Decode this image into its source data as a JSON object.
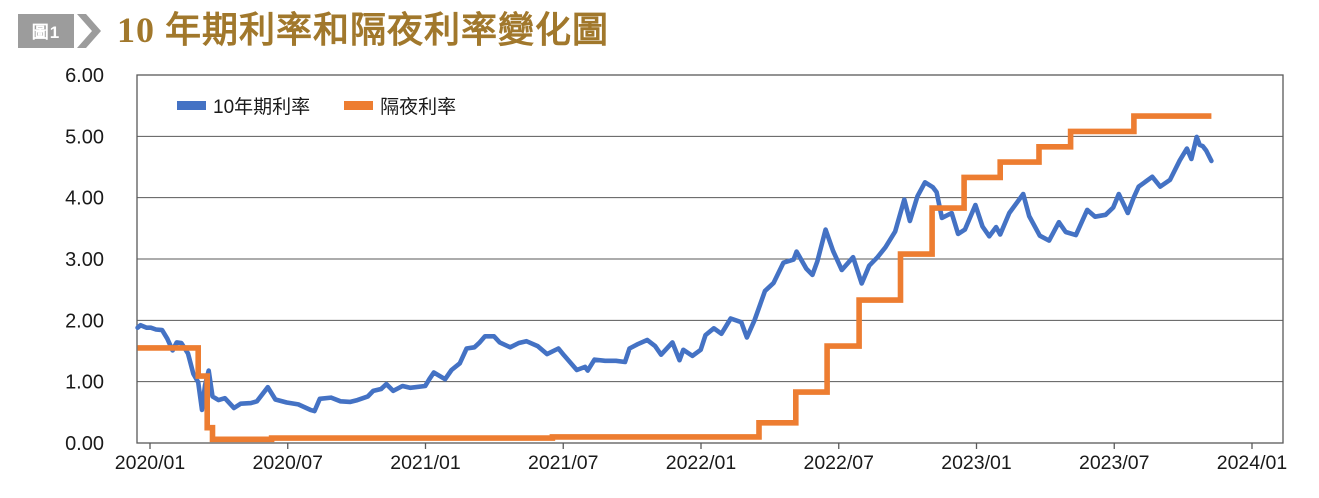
{
  "figure_badge": "圖1",
  "title": "10 年期利率和隔夜利率變化圖",
  "colors": {
    "title": "#a1782c",
    "badge": "#9c9c9c",
    "series_10y": "#4472c4",
    "series_overnight": "#ed7d31",
    "grid": "#595959",
    "axis_text": "#1a1a1a"
  },
  "chart_data": {
    "type": "line",
    "title": "10 年期利率和隔夜利率變化圖",
    "ylabel": "",
    "xlabel": "",
    "ylim": [
      0,
      6
    ],
    "grid": "horizontal",
    "legend_position": "top-left-inside",
    "y_tick_labels": [
      "6.00",
      "5.00",
      "4.00",
      "3.00",
      "2.00",
      "1.00",
      "0.00"
    ],
    "y_tick_values": [
      6,
      5,
      4,
      3,
      2,
      1,
      0
    ],
    "x_tick_labels": [
      "2020/01",
      "2020/07",
      "2021/01",
      "2021/07",
      "2022/01",
      "2022/07",
      "2023/01",
      "2023/07",
      "2024/01"
    ],
    "series": [
      {
        "name": "10年期利率",
        "style": "line",
        "color": "#4472c4",
        "points": [
          [
            "2019-12-15",
            1.88
          ],
          [
            "2019-12-19",
            1.92
          ],
          [
            "2019-12-27",
            1.88
          ],
          [
            "2020-01-02",
            1.88
          ],
          [
            "2020-01-09",
            1.85
          ],
          [
            "2020-01-17",
            1.84
          ],
          [
            "2020-01-24",
            1.7
          ],
          [
            "2020-01-31",
            1.51
          ],
          [
            "2020-02-06",
            1.64
          ],
          [
            "2020-02-12",
            1.63
          ],
          [
            "2020-02-21",
            1.46
          ],
          [
            "2020-02-28",
            1.13
          ],
          [
            "2020-03-04",
            0.99
          ],
          [
            "2020-03-09",
            0.54
          ],
          [
            "2020-03-13",
            0.94
          ],
          [
            "2020-03-18",
            1.18
          ],
          [
            "2020-03-23",
            0.76
          ],
          [
            "2020-03-31",
            0.7
          ],
          [
            "2020-04-09",
            0.73
          ],
          [
            "2020-04-21",
            0.57
          ],
          [
            "2020-04-30",
            0.64
          ],
          [
            "2020-05-13",
            0.65
          ],
          [
            "2020-05-21",
            0.68
          ],
          [
            "2020-06-05",
            0.91
          ],
          [
            "2020-06-15",
            0.71
          ],
          [
            "2020-06-30",
            0.66
          ],
          [
            "2020-07-15",
            0.63
          ],
          [
            "2020-07-31",
            0.54
          ],
          [
            "2020-08-06",
            0.52
          ],
          [
            "2020-08-13",
            0.72
          ],
          [
            "2020-08-28",
            0.74
          ],
          [
            "2020-09-10",
            0.68
          ],
          [
            "2020-09-23",
            0.67
          ],
          [
            "2020-10-02",
            0.7
          ],
          [
            "2020-10-16",
            0.76
          ],
          [
            "2020-10-23",
            0.85
          ],
          [
            "2020-11-03",
            0.88
          ],
          [
            "2020-11-10",
            0.96
          ],
          [
            "2020-11-19",
            0.85
          ],
          [
            "2020-12-01",
            0.93
          ],
          [
            "2020-12-11",
            0.9
          ],
          [
            "2020-12-31",
            0.93
          ],
          [
            "2021-01-06",
            1.04
          ],
          [
            "2021-01-12",
            1.15
          ],
          [
            "2021-01-27",
            1.04
          ],
          [
            "2021-02-05",
            1.19
          ],
          [
            "2021-02-16",
            1.3
          ],
          [
            "2021-02-25",
            1.54
          ],
          [
            "2021-03-05",
            1.56
          ],
          [
            "2021-03-12",
            1.64
          ],
          [
            "2021-03-19",
            1.74
          ],
          [
            "2021-03-31",
            1.74
          ],
          [
            "2021-04-08",
            1.64
          ],
          [
            "2021-04-22",
            1.56
          ],
          [
            "2021-05-03",
            1.63
          ],
          [
            "2021-05-13",
            1.66
          ],
          [
            "2021-05-28",
            1.58
          ],
          [
            "2021-06-10",
            1.45
          ],
          [
            "2021-06-25",
            1.54
          ],
          [
            "2021-07-02",
            1.43
          ],
          [
            "2021-07-19",
            1.19
          ],
          [
            "2021-07-30",
            1.24
          ],
          [
            "2021-08-03",
            1.18
          ],
          [
            "2021-08-12",
            1.36
          ],
          [
            "2021-08-26",
            1.34
          ],
          [
            "2021-09-10",
            1.34
          ],
          [
            "2021-09-22",
            1.32
          ],
          [
            "2021-09-28",
            1.54
          ],
          [
            "2021-10-08",
            1.61
          ],
          [
            "2021-10-21",
            1.68
          ],
          [
            "2021-11-01",
            1.58
          ],
          [
            "2021-11-09",
            1.44
          ],
          [
            "2021-11-24",
            1.64
          ],
          [
            "2021-12-03",
            1.35
          ],
          [
            "2021-12-08",
            1.52
          ],
          [
            "2021-12-20",
            1.42
          ],
          [
            "2021-12-31",
            1.52
          ],
          [
            "2022-01-07",
            1.76
          ],
          [
            "2022-01-18",
            1.87
          ],
          [
            "2022-01-28",
            1.78
          ],
          [
            "2022-02-10",
            2.03
          ],
          [
            "2022-02-24",
            1.97
          ],
          [
            "2022-03-01",
            1.72
          ],
          [
            "2022-03-11",
            2.0
          ],
          [
            "2022-03-25",
            2.48
          ],
          [
            "2022-04-06",
            2.61
          ],
          [
            "2022-04-19",
            2.94
          ],
          [
            "2022-05-02",
            2.99
          ],
          [
            "2022-05-06",
            3.12
          ],
          [
            "2022-05-19",
            2.84
          ],
          [
            "2022-05-27",
            2.74
          ],
          [
            "2022-06-03",
            2.96
          ],
          [
            "2022-06-14",
            3.48
          ],
          [
            "2022-06-24",
            3.13
          ],
          [
            "2022-07-05",
            2.82
          ],
          [
            "2022-07-20",
            3.03
          ],
          [
            "2022-08-01",
            2.6
          ],
          [
            "2022-08-11",
            2.89
          ],
          [
            "2022-08-22",
            3.03
          ],
          [
            "2022-09-02",
            3.19
          ],
          [
            "2022-09-15",
            3.45
          ],
          [
            "2022-09-27",
            3.97
          ],
          [
            "2022-10-04",
            3.62
          ],
          [
            "2022-10-14",
            4.02
          ],
          [
            "2022-10-24",
            4.25
          ],
          [
            "2022-11-04",
            4.17
          ],
          [
            "2022-11-09",
            4.09
          ],
          [
            "2022-11-16",
            3.67
          ],
          [
            "2022-11-29",
            3.75
          ],
          [
            "2022-12-07",
            3.41
          ],
          [
            "2022-12-16",
            3.48
          ],
          [
            "2022-12-30",
            3.88
          ],
          [
            "2023-01-09",
            3.53
          ],
          [
            "2023-01-18",
            3.37
          ],
          [
            "2023-01-27",
            3.52
          ],
          [
            "2023-02-02",
            3.4
          ],
          [
            "2023-02-14",
            3.75
          ],
          [
            "2023-03-02",
            4.06
          ],
          [
            "2023-03-10",
            3.7
          ],
          [
            "2023-03-24",
            3.38
          ],
          [
            "2023-04-06",
            3.3
          ],
          [
            "2023-04-19",
            3.6
          ],
          [
            "2023-04-28",
            3.44
          ],
          [
            "2023-05-11",
            3.39
          ],
          [
            "2023-05-26",
            3.8
          ],
          [
            "2023-06-06",
            3.69
          ],
          [
            "2023-06-20",
            3.72
          ],
          [
            "2023-06-30",
            3.84
          ],
          [
            "2023-07-07",
            4.06
          ],
          [
            "2023-07-19",
            3.75
          ],
          [
            "2023-07-27",
            4.01
          ],
          [
            "2023-08-03",
            4.18
          ],
          [
            "2023-08-21",
            4.34
          ],
          [
            "2023-09-01",
            4.18
          ],
          [
            "2023-09-14",
            4.29
          ],
          [
            "2023-09-27",
            4.61
          ],
          [
            "2023-10-06",
            4.8
          ],
          [
            "2023-10-12",
            4.63
          ],
          [
            "2023-10-19",
            4.99
          ],
          [
            "2023-10-23",
            4.86
          ],
          [
            "2023-10-27",
            4.84
          ],
          [
            "2023-11-01",
            4.77
          ],
          [
            "2023-11-08",
            4.6
          ]
        ]
      },
      {
        "name": "隔夜利率",
        "style": "step",
        "color": "#ed7d31",
        "points": [
          [
            "2019-12-15",
            1.55
          ],
          [
            "2020-03-04",
            1.09
          ],
          [
            "2020-03-16",
            0.25
          ],
          [
            "2020-03-23",
            0.06
          ],
          [
            "2020-06-10",
            0.08
          ],
          [
            "2021-06-17",
            0.1
          ],
          [
            "2022-03-17",
            0.33
          ],
          [
            "2022-05-05",
            0.83
          ],
          [
            "2022-06-16",
            1.58
          ],
          [
            "2022-07-28",
            2.33
          ],
          [
            "2022-09-22",
            3.08
          ],
          [
            "2022-11-03",
            3.83
          ],
          [
            "2022-12-15",
            4.33
          ],
          [
            "2023-02-02",
            4.58
          ],
          [
            "2023-03-23",
            4.83
          ],
          [
            "2023-05-04",
            5.08
          ],
          [
            "2023-07-27",
            5.33
          ],
          [
            "2023-11-08",
            5.33
          ]
        ]
      }
    ]
  }
}
